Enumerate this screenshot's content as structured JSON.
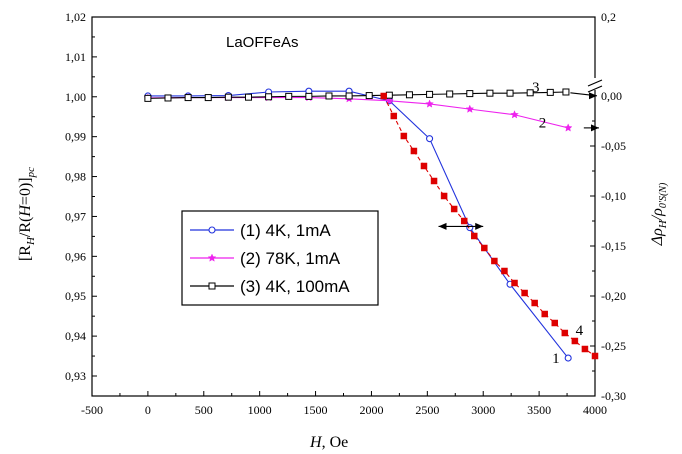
{
  "chart_data": {
    "type": "line",
    "title": "LaOFFeAs",
    "xlabel": {
      "italic": "H",
      "rest": ", Oe"
    },
    "ylabel_left": {
      "a": "[R",
      "b": "H",
      "c": "/R(",
      "d": "H",
      "e": "=0)]",
      "f": "pc"
    },
    "ylabel_right": {
      "a": "Δρ",
      "b": "H",
      "c": "/ρ",
      "d": "0'S(N)"
    },
    "xlim": [
      -500,
      4000
    ],
    "ylim_left": [
      0.925,
      1.02
    ],
    "ylim_right": [
      -0.3,
      0.2
    ],
    "x_ticks": [
      -500,
      0,
      500,
      1000,
      1500,
      2000,
      2500,
      3000,
      3500,
      4000
    ],
    "x_tick_labels": [
      "-500",
      "0",
      "500",
      "1000",
      "1500",
      "2000",
      "2500",
      "3000",
      "3500",
      "4000"
    ],
    "y_left_ticks": [
      0.93,
      0.94,
      0.95,
      0.96,
      0.97,
      0.98,
      0.99,
      1.0,
      1.01,
      1.02
    ],
    "y_left_tick_labels": [
      "0,93",
      "0,94",
      "0,95",
      "0,96",
      "0,97",
      "0,98",
      "0,99",
      "1,00",
      "1,01",
      "1,02"
    ],
    "y_right_ticks": [
      -0.3,
      -0.25,
      -0.2,
      -0.15,
      -0.1,
      -0.05,
      0.0,
      0.2
    ],
    "y_right_tick_labels": [
      "-0,30",
      "-0,25",
      "-0,20",
      "-0,15",
      "-0,10",
      "-0,05",
      "0,00",
      "0,2"
    ],
    "series": [
      {
        "name": "(1) 4K,  1mA",
        "color": "#2233dd",
        "marker": "circle",
        "axis": "left",
        "x": [
          0,
          360,
          720,
          1080,
          1440,
          1800,
          2160,
          2520,
          2880,
          3240,
          3760
        ],
        "y": [
          1.0002,
          1.0002,
          1.0003,
          1.0012,
          1.0014,
          1.0014,
          0.999,
          0.9895,
          0.9672,
          0.953,
          0.9345
        ]
      },
      {
        "name": "(2) 78K,  1mA",
        "color": "#ee22ee",
        "marker": "star",
        "axis": "left",
        "x": [
          0,
          360,
          720,
          1080,
          1440,
          1800,
          2160,
          2520,
          2880,
          3280,
          3760
        ],
        "y": [
          0.9997,
          0.9998,
          0.9998,
          0.9998,
          0.9998,
          0.9995,
          0.999,
          0.9982,
          0.9969,
          0.9955,
          0.9922
        ]
      },
      {
        "name": "(3) 4K,  100mA",
        "color": "#000000",
        "marker": "square-open",
        "axis": "left",
        "x": [
          0,
          180,
          360,
          540,
          720,
          900,
          1080,
          1260,
          1440,
          1620,
          1800,
          1980,
          2160,
          2340,
          2520,
          2700,
          2880,
          3060,
          3240,
          3420,
          3600,
          3740
        ],
        "y": [
          0.9996,
          0.9997,
          0.9998,
          0.9998,
          0.9999,
          0.9999,
          1.0,
          1.0001,
          1.0001,
          1.0002,
          1.0002,
          1.0003,
          1.0004,
          1.0005,
          1.0006,
          1.0007,
          1.0008,
          1.0009,
          1.0009,
          1.001,
          1.0011,
          1.0012
        ]
      },
      {
        "name": "",
        "color": "#dd0000",
        "marker": "square-filled",
        "axis": "right",
        "dashed": true,
        "x": [
          2110,
          2200,
          2290,
          2380,
          2470,
          2560,
          2650,
          2740,
          2830,
          2920,
          3010,
          3100,
          3190,
          3280,
          3370,
          3460,
          3550,
          3640,
          3730,
          3820,
          3910,
          4000
        ],
        "y": [
          0.0,
          -0.02,
          -0.04,
          -0.055,
          -0.07,
          -0.085,
          -0.1,
          -0.113,
          -0.125,
          -0.14,
          -0.152,
          -0.165,
          -0.175,
          -0.187,
          -0.197,
          -0.207,
          -0.218,
          -0.227,
          -0.237,
          -0.245,
          -0.253,
          -0.26
        ]
      }
    ],
    "annotations": [
      {
        "text": "1",
        "x": 3650,
        "y": 0.9345
      },
      {
        "text": "2",
        "x": 3530,
        "y": 0.9935
      },
      {
        "text": "3",
        "x": 3470,
        "y": 1.0025
      },
      {
        "text": "4",
        "x": 3860,
        "y": 0.9415
      }
    ],
    "legend_position": "center-left",
    "grid": false
  }
}
